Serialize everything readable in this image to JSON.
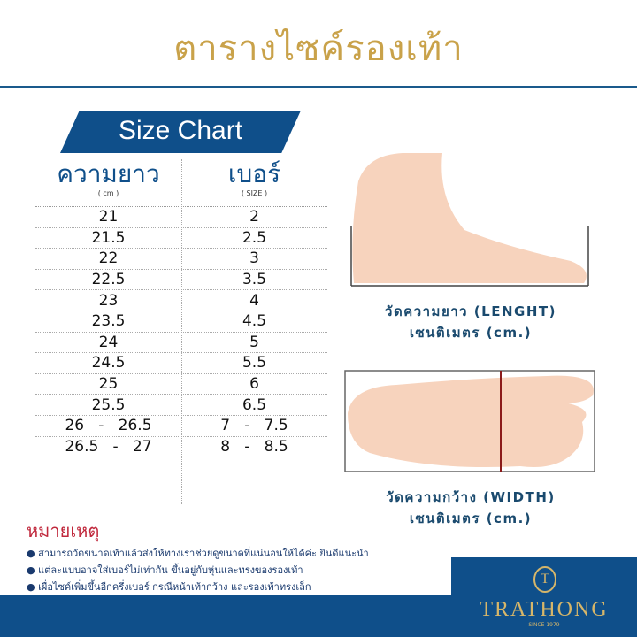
{
  "title": "ตารางไซค์รองเท้า",
  "banner": "Size Chart",
  "table": {
    "headers": [
      {
        "label": "ความยาว",
        "unit": "( cm )"
      },
      {
        "label": "เบอร์",
        "unit": "( SIZE )"
      }
    ],
    "rows": [
      [
        "21",
        "2"
      ],
      [
        "21.5",
        "2.5"
      ],
      [
        "22",
        "3"
      ],
      [
        "22.5",
        "3.5"
      ],
      [
        "23",
        "4"
      ],
      [
        "23.5",
        "4.5"
      ],
      [
        "24",
        "5"
      ],
      [
        "24.5",
        "5.5"
      ],
      [
        "25",
        "6"
      ],
      [
        "25.5",
        "6.5"
      ],
      [
        "26   -   26.5",
        "7   -   7.5"
      ],
      [
        "26.5   -   27",
        "8   -   8.5"
      ]
    ]
  },
  "length_caption": {
    "line1": "วัดความยาว (LENGHT)",
    "line2": "เซนติเมตร (cm.)"
  },
  "width_caption": {
    "line1": "วัดความกว้าง (WIDTH)",
    "line2": "เซนติเมตร (cm.)"
  },
  "notes": {
    "title": "หมายเหตุ",
    "items": [
      "สามารถวัดขนาดเท้าแล้วส่งให้ทางเราช่วยดูขนาดที่แน่นอนให้ได้ค่ะ ยินดีแนะนำ",
      "แต่ละแบบอาจใส่เบอร์ไม่เท่ากัน ขึ้นอยู่กับหุ่นและทรงของรองเท้า",
      "เผื่อไซค์เพิ่มขึ้นอีกครึ่งเบอร์ กรณีหน้าเท้ากว้าง และรองเท้าทรงเล็ก"
    ]
  },
  "logo": {
    "mark": "T",
    "name": "TRATHONG",
    "since": "SINCE 1979"
  },
  "colors": {
    "brand_blue": "#0f4f8a",
    "gold": "#c9a24a",
    "skin": "#f7d3bd",
    "note_red": "#c0283c"
  }
}
